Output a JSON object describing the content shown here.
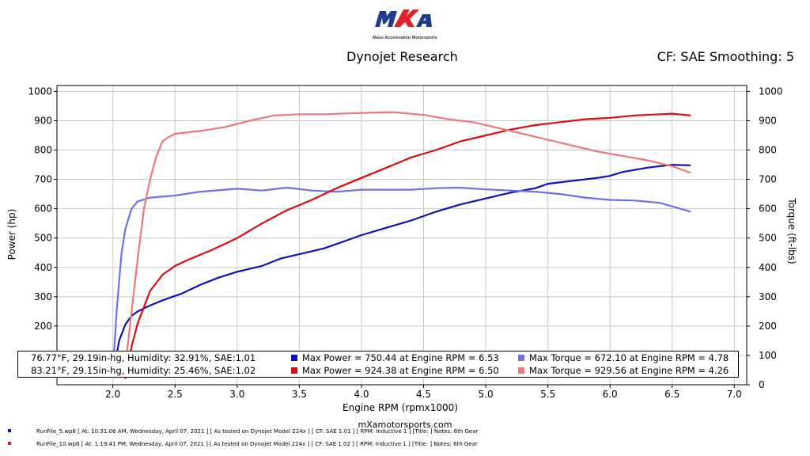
{
  "logo": {
    "mark": "mxa",
    "tagline": "Mass Acceleration Motorsports"
  },
  "header": {
    "title": "Dynojet Research",
    "cf_info": "CF: SAE Smoothing: 5"
  },
  "legend": {
    "rows": [
      {
        "conditions": "76.77°F, 29.19in-hg, Humidity: 32.91%, SAE:1.01",
        "max_power": "Max Power = 750.44 at Engine RPM = 6.53",
        "max_torque": "Max Torque = 672.10 at Engine RPM = 4.78"
      },
      {
        "conditions": "83.21°F, 29.15in-hg, Humidity: 25.46%, SAE:1.02",
        "max_power": "Max Power = 924.38 at Engine RPM = 6.50",
        "max_torque": "Max Torque = 929.56 at Engine RPM = 4.26"
      }
    ]
  },
  "footer": {
    "site": "mXamotorsports.com",
    "runs": [
      "RunFile_5.wp8 [ At: 10:31:06 AM, Wednesday, April 07, 2021 ] [ As tested on Dynojet Model 224x ] [ CF: SAE 1.01 ] [ RPM: Inductive 1 ] [Title: ] Notes: 6th Gear",
      "RunFile_10.wp8 [ At: 1:19:41 PM, Wednesday, April 07, 2021 ] [ As tested on Dynojet Model 224x ] [ CF: SAE 1.02 ] [ RPM: Inductive 1 ] [Title: ] Notes: 6th Gear"
    ]
  },
  "colors": {
    "run1_power": "#0a14b4",
    "run1_torque": "#6f6fe6",
    "run2_power": "#d80f0f",
    "run2_torque": "#ee7878",
    "grid": "#c8c8c8"
  },
  "chart_data": {
    "type": "line",
    "xlabel": "Engine RPM (rpmx1000)",
    "ylabel": "Power (hp)",
    "y2label": "Torque (ft-lbs)",
    "xlim": [
      1.55,
      7.1
    ],
    "ylim": [
      0,
      1020
    ],
    "xticks": [
      2.0,
      2.5,
      3.0,
      3.5,
      4.0,
      4.5,
      5.0,
      5.5,
      6.0,
      6.5,
      7.0
    ],
    "yticks": [
      100,
      200,
      300,
      400,
      500,
      600,
      700,
      800,
      900,
      1000
    ],
    "y2ticks": [
      0,
      100,
      200,
      300,
      400,
      500,
      600,
      700,
      800,
      900,
      1000
    ],
    "grid": true,
    "series": [
      {
        "key": "run1_power",
        "color": "#0a14b4",
        "x": [
          2.0,
          2.05,
          2.1,
          2.15,
          2.2,
          2.3,
          2.4,
          2.55,
          2.7,
          2.85,
          3.0,
          3.2,
          3.35,
          3.5,
          3.7,
          3.9,
          4.0,
          4.2,
          4.4,
          4.6,
          4.8,
          5.0,
          5.2,
          5.4,
          5.5,
          5.7,
          5.9,
          6.0,
          6.1,
          6.3,
          6.5,
          6.65
        ],
        "y": [
          30,
          150,
          205,
          235,
          250,
          270,
          288,
          310,
          340,
          365,
          385,
          405,
          430,
          445,
          465,
          495,
          510,
          535,
          560,
          590,
          615,
          635,
          655,
          670,
          685,
          695,
          705,
          712,
          725,
          740,
          750,
          748
        ]
      },
      {
        "key": "run1_torque",
        "color": "#6f6fe6",
        "x": [
          2.0,
          2.03,
          2.07,
          2.1,
          2.15,
          2.2,
          2.3,
          2.5,
          2.7,
          3.0,
          3.2,
          3.4,
          3.6,
          3.8,
          4.0,
          4.2,
          4.4,
          4.6,
          4.78,
          5.0,
          5.2,
          5.4,
          5.6,
          5.8,
          6.0,
          6.2,
          6.4,
          6.65
        ],
        "y": [
          40,
          250,
          450,
          530,
          600,
          625,
          638,
          645,
          658,
          668,
          662,
          672,
          662,
          658,
          665,
          665,
          665,
          670,
          672,
          666,
          662,
          658,
          650,
          638,
          630,
          628,
          620,
          590
        ]
      },
      {
        "key": "run2_power",
        "color": "#d80f0f",
        "x": [
          2.1,
          2.15,
          2.2,
          2.3,
          2.4,
          2.5,
          2.6,
          2.8,
          3.0,
          3.2,
          3.4,
          3.6,
          3.8,
          4.0,
          4.2,
          4.4,
          4.6,
          4.8,
          5.0,
          5.2,
          5.4,
          5.6,
          5.8,
          6.0,
          6.2,
          6.4,
          6.5,
          6.65
        ],
        "y": [
          20,
          130,
          210,
          320,
          375,
          405,
          425,
          460,
          500,
          550,
          595,
          630,
          670,
          705,
          740,
          775,
          800,
          830,
          850,
          870,
          885,
          895,
          905,
          910,
          918,
          922,
          924,
          918
        ]
      },
      {
        "key": "run2_torque",
        "color": "#ee7878",
        "x": [
          2.1,
          2.15,
          2.2,
          2.25,
          2.3,
          2.35,
          2.4,
          2.45,
          2.5,
          2.7,
          2.9,
          3.1,
          3.3,
          3.5,
          3.7,
          3.9,
          4.1,
          4.26,
          4.5,
          4.7,
          4.9,
          5.1,
          5.3,
          5.5,
          5.7,
          5.9,
          6.1,
          6.3,
          6.5,
          6.65
        ],
        "y": [
          60,
          250,
          430,
          600,
          700,
          780,
          830,
          845,
          855,
          865,
          878,
          900,
          918,
          922,
          922,
          925,
          928,
          929,
          920,
          905,
          895,
          875,
          855,
          835,
          815,
          795,
          780,
          765,
          745,
          722
        ]
      }
    ]
  }
}
